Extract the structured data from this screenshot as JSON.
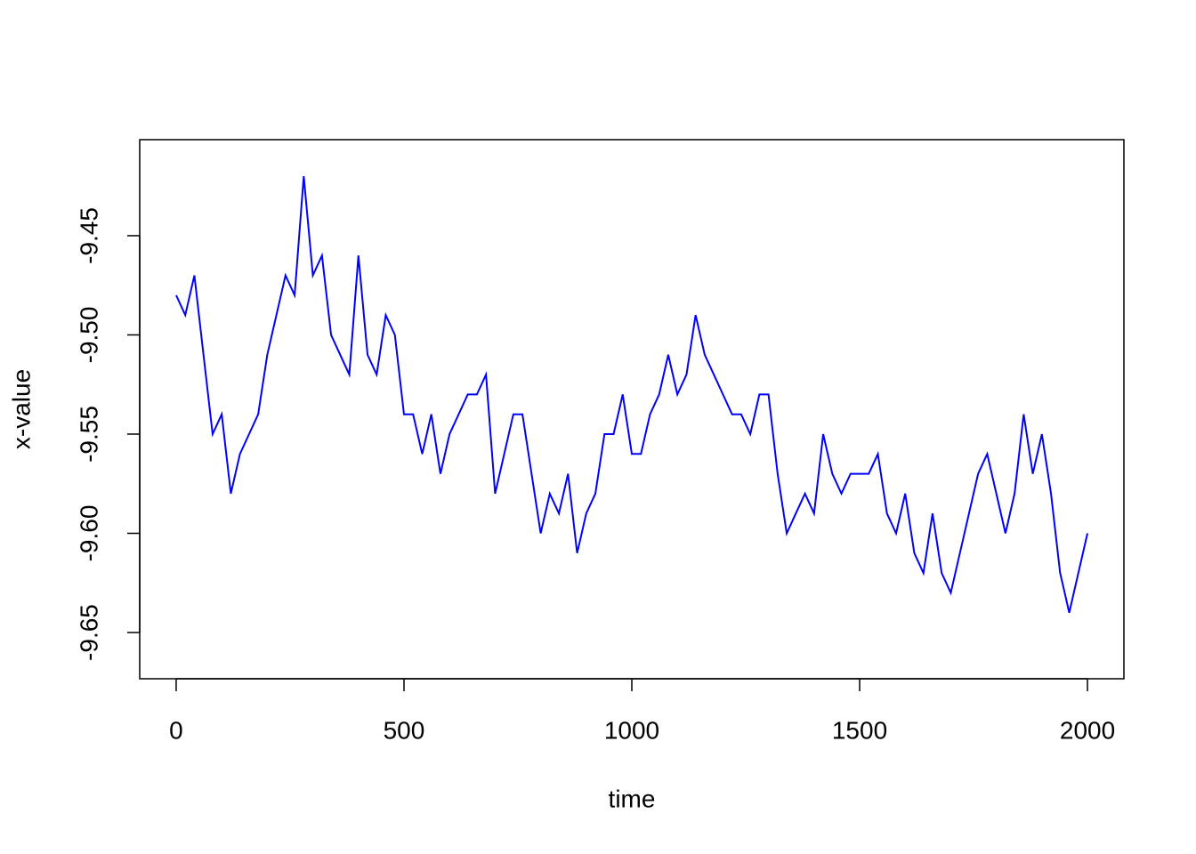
{
  "chart_data": {
    "type": "line",
    "xlabel": "time",
    "ylabel": "x-value",
    "x": [
      0,
      20,
      40,
      60,
      80,
      100,
      120,
      140,
      160,
      180,
      200,
      220,
      240,
      260,
      280,
      300,
      320,
      340,
      360,
      380,
      400,
      420,
      440,
      460,
      480,
      500,
      520,
      540,
      560,
      580,
      600,
      620,
      640,
      660,
      680,
      700,
      720,
      740,
      760,
      780,
      800,
      820,
      840,
      860,
      880,
      900,
      920,
      940,
      960,
      980,
      1000,
      1020,
      1040,
      1060,
      1080,
      1100,
      1120,
      1140,
      1160,
      1180,
      1200,
      1220,
      1240,
      1260,
      1280,
      1300,
      1320,
      1340,
      1360,
      1380,
      1400,
      1420,
      1440,
      1460,
      1480,
      1500,
      1520,
      1540,
      1560,
      1580,
      1600,
      1620,
      1640,
      1660,
      1680,
      1700,
      1720,
      1740,
      1760,
      1780,
      1800,
      1820,
      1840,
      1860,
      1880,
      1900,
      1920,
      1940,
      1960,
      1980,
      2000
    ],
    "series": [
      {
        "color": "#0000ff",
        "values": [
          -9.48,
          -9.49,
          -9.47,
          -9.51,
          -9.55,
          -9.54,
          -9.58,
          -9.56,
          -9.55,
          -9.54,
          -9.51,
          -9.49,
          -9.47,
          -9.48,
          -9.42,
          -9.47,
          -9.46,
          -9.5,
          -9.51,
          -9.52,
          -9.46,
          -9.51,
          -9.52,
          -9.49,
          -9.5,
          -9.54,
          -9.54,
          -9.56,
          -9.54,
          -9.57,
          -9.55,
          -9.54,
          -9.53,
          -9.53,
          -9.52,
          -9.58,
          -9.56,
          -9.54,
          -9.54,
          -9.57,
          -9.6,
          -9.58,
          -9.59,
          -9.57,
          -9.61,
          -9.59,
          -9.58,
          -9.55,
          -9.55,
          -9.53,
          -9.56,
          -9.56,
          -9.54,
          -9.53,
          -9.51,
          -9.53,
          -9.52,
          -9.49,
          -9.51,
          -9.52,
          -9.53,
          -9.54,
          -9.54,
          -9.55,
          -9.53,
          -9.53,
          -9.57,
          -9.6,
          -9.59,
          -9.58,
          -9.59,
          -9.55,
          -9.57,
          -9.58,
          -9.57,
          -9.57,
          -9.57,
          -9.56,
          -9.59,
          -9.6,
          -9.58,
          -9.61,
          -9.62,
          -9.59,
          -9.62,
          -9.63,
          -9.61,
          -9.59,
          -9.57,
          -9.56,
          -9.58,
          -9.6,
          -9.58,
          -9.54,
          -9.57,
          -9.55,
          -9.58,
          -9.62,
          -9.64,
          -9.62,
          -9.6
        ]
      }
    ],
    "xlim": [
      -80,
      2080
    ],
    "xticks": [
      0,
      500,
      1000,
      1500,
      2000
    ],
    "ylim": [
      -9.6733,
      -9.4016
    ],
    "yticks": [
      -9.45,
      {
        "value": -9.5,
        "label": "-9.50"
      },
      -9.55,
      {
        "value": -9.6,
        "label": "-9.60"
      },
      -9.65
    ]
  }
}
